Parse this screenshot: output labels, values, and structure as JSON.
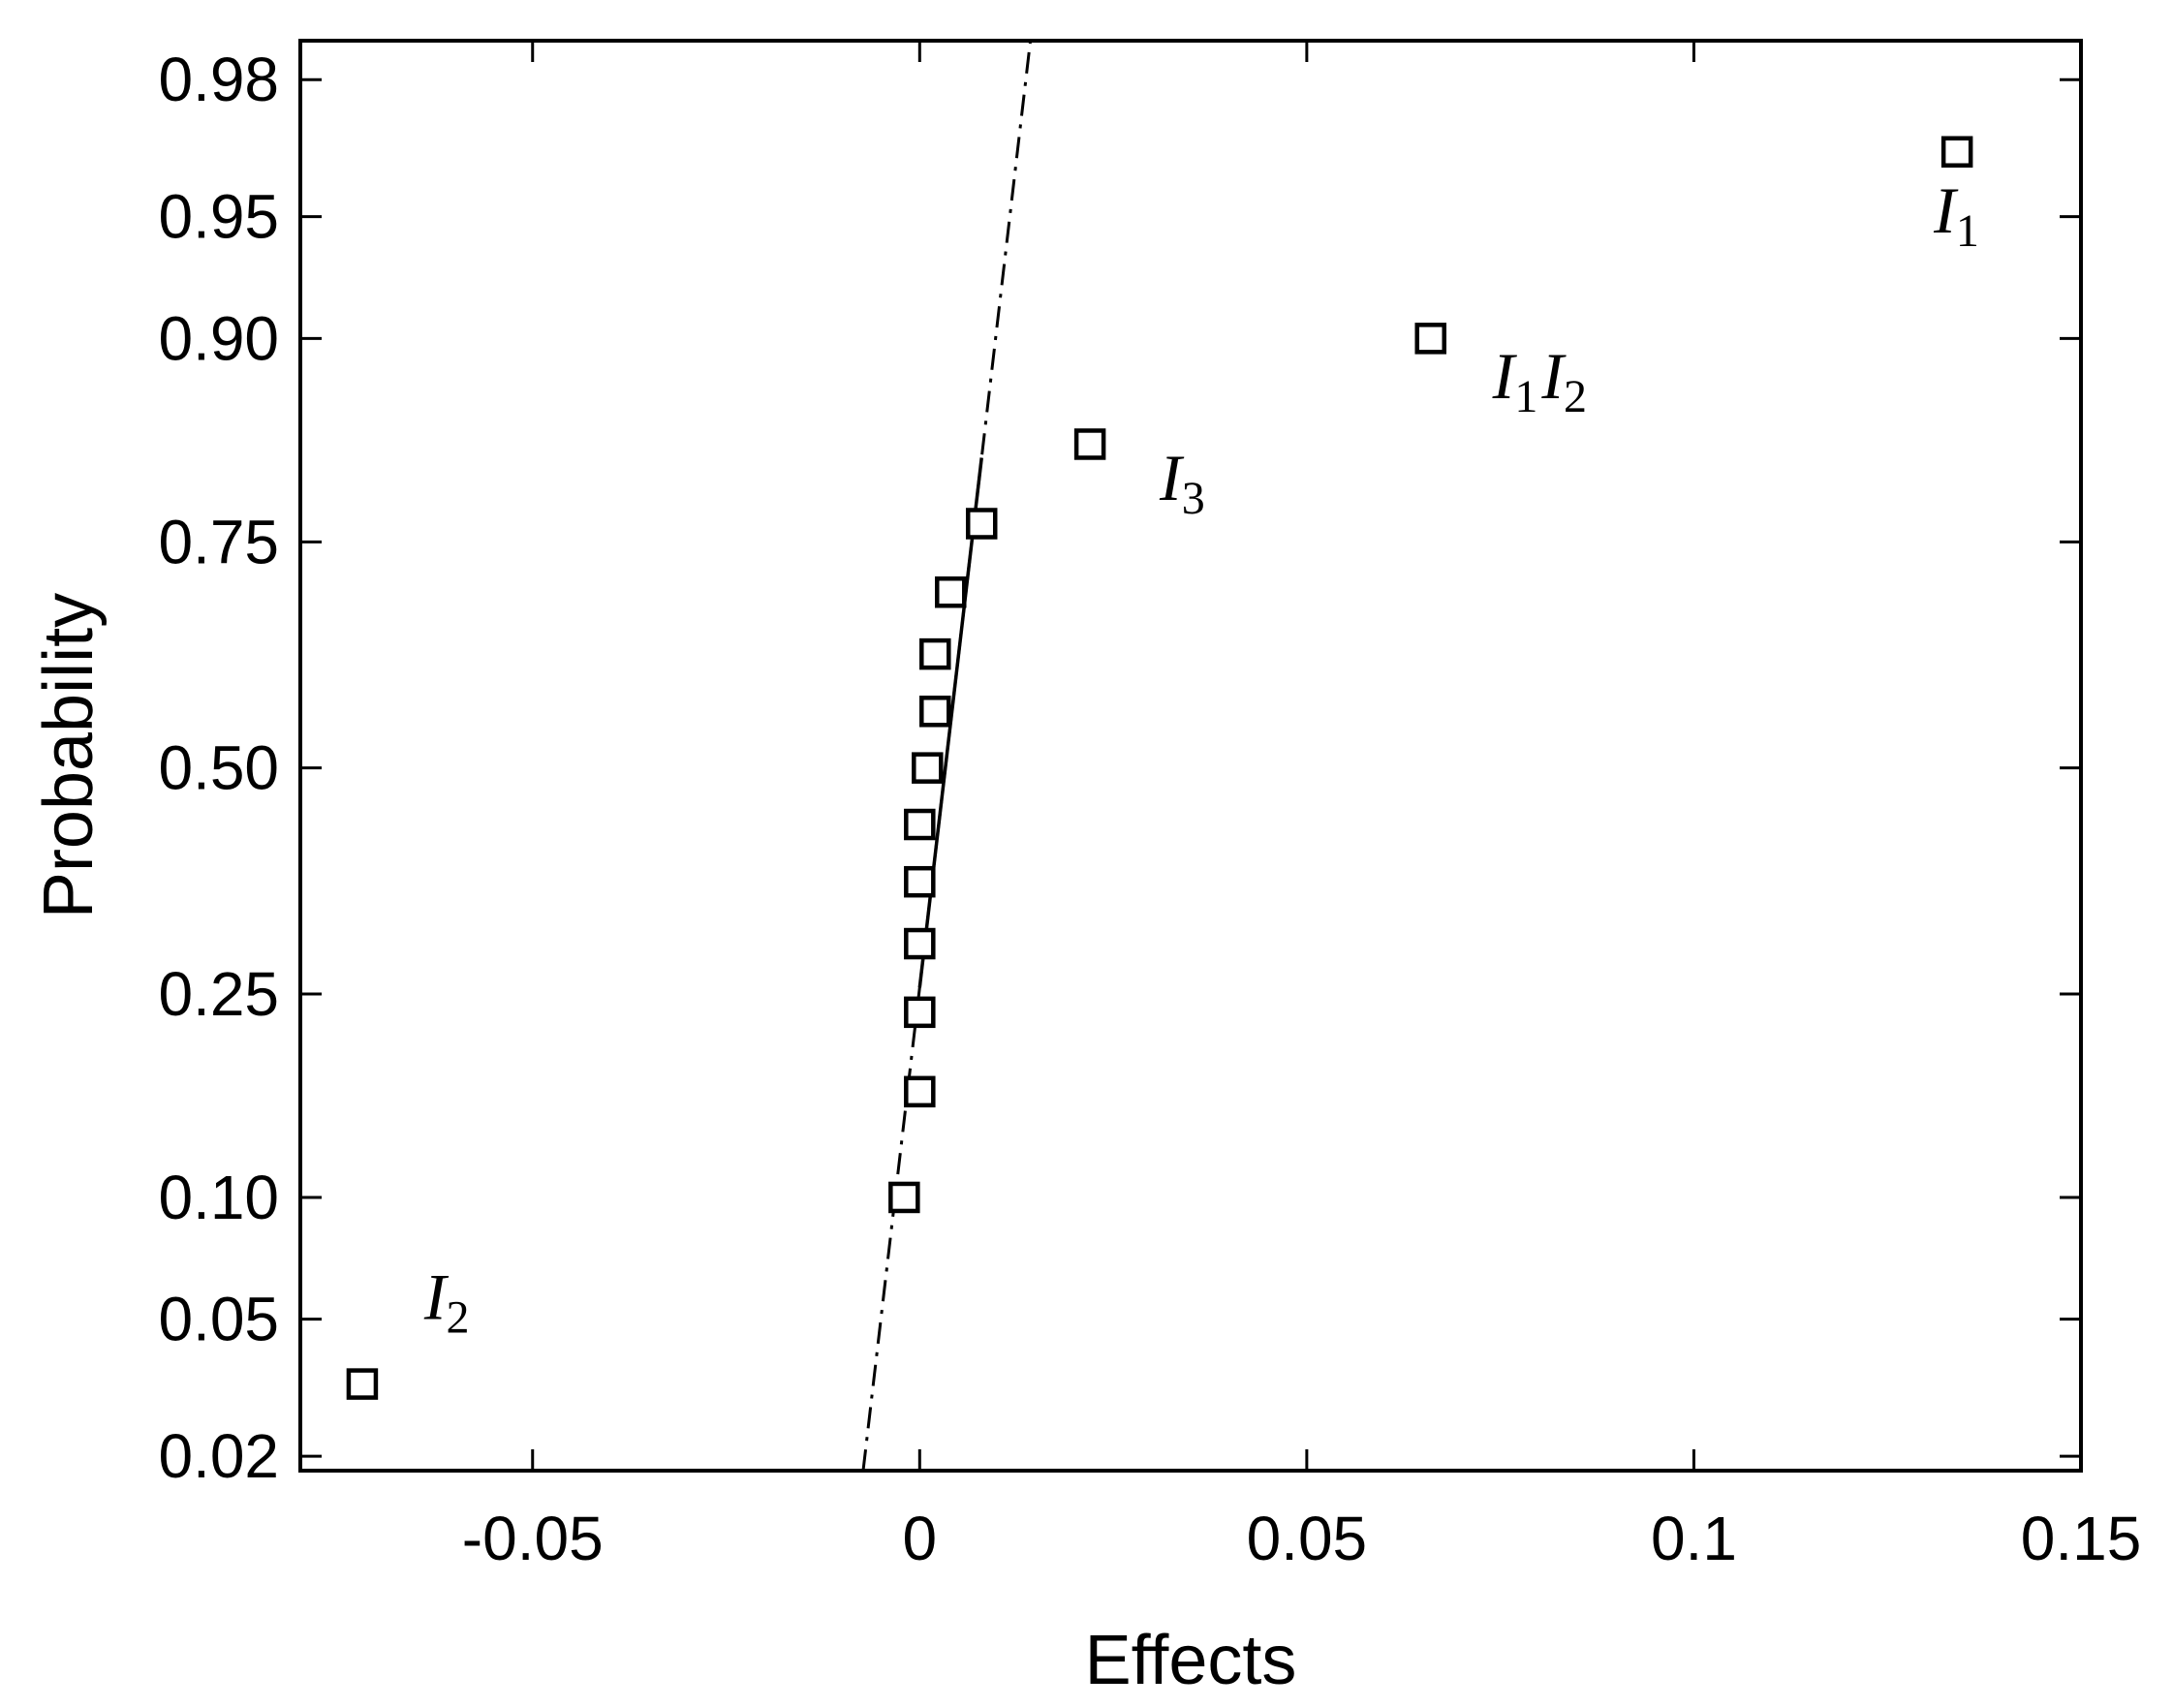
{
  "chart_data": {
    "type": "scatter",
    "title": "",
    "xlabel": "Effects",
    "ylabel": "Probability",
    "xlim": [
      -0.08,
      0.15
    ],
    "ylim": [
      0.018,
      0.985
    ],
    "y_scale": "normal-probability",
    "x_ticks": [
      -0.05,
      0,
      0.05,
      0.1,
      0.15
    ],
    "x_tick_labels": [
      "-0.05",
      "0",
      "0.05",
      "0.1",
      "0.15"
    ],
    "y_ticks": [
      0.02,
      0.05,
      0.1,
      0.25,
      0.5,
      0.75,
      0.9,
      0.95,
      0.98
    ],
    "y_tick_labels": [
      "0.02",
      "0.05",
      "0.10",
      "0.25",
      "0.50",
      "0.75",
      "0.90",
      "0.95",
      "0.98"
    ],
    "grid": false,
    "marker": "open-square",
    "points": [
      {
        "x": -0.072,
        "y": 0.033
      },
      {
        "x": -0.002,
        "y": 0.1
      },
      {
        "x": 0.0,
        "y": 0.167
      },
      {
        "x": 0.0,
        "y": 0.233
      },
      {
        "x": 0.0,
        "y": 0.3
      },
      {
        "x": 0.0,
        "y": 0.367
      },
      {
        "x": 0.0,
        "y": 0.433
      },
      {
        "x": 0.001,
        "y": 0.5
      },
      {
        "x": 0.002,
        "y": 0.567
      },
      {
        "x": 0.002,
        "y": 0.633
      },
      {
        "x": 0.004,
        "y": 0.7
      },
      {
        "x": 0.008,
        "y": 0.767
      },
      {
        "x": 0.022,
        "y": 0.833
      },
      {
        "x": 0.066,
        "y": 0.9
      },
      {
        "x": 0.134,
        "y": 0.967
      }
    ],
    "reference_line": {
      "style": "dash-dot",
      "solid_x_range": [
        0.0,
        0.008
      ],
      "points": [
        {
          "x": -0.0073,
          "y": 0.018
        },
        {
          "x": 0.0143,
          "y": 0.985
        }
      ]
    },
    "annotations": [
      {
        "base": "I",
        "sub": "1",
        "x": 0.131,
        "y": 0.945
      },
      {
        "base": "I",
        "sub": "1",
        "x": 0.074,
        "y": 0.865,
        "base2": "I",
        "sub2": "2"
      },
      {
        "base": "I",
        "sub": "3",
        "x": 0.031,
        "y": 0.788
      },
      {
        "base": "I",
        "sub": "2",
        "x": -0.064,
        "y": 0.05
      }
    ]
  }
}
